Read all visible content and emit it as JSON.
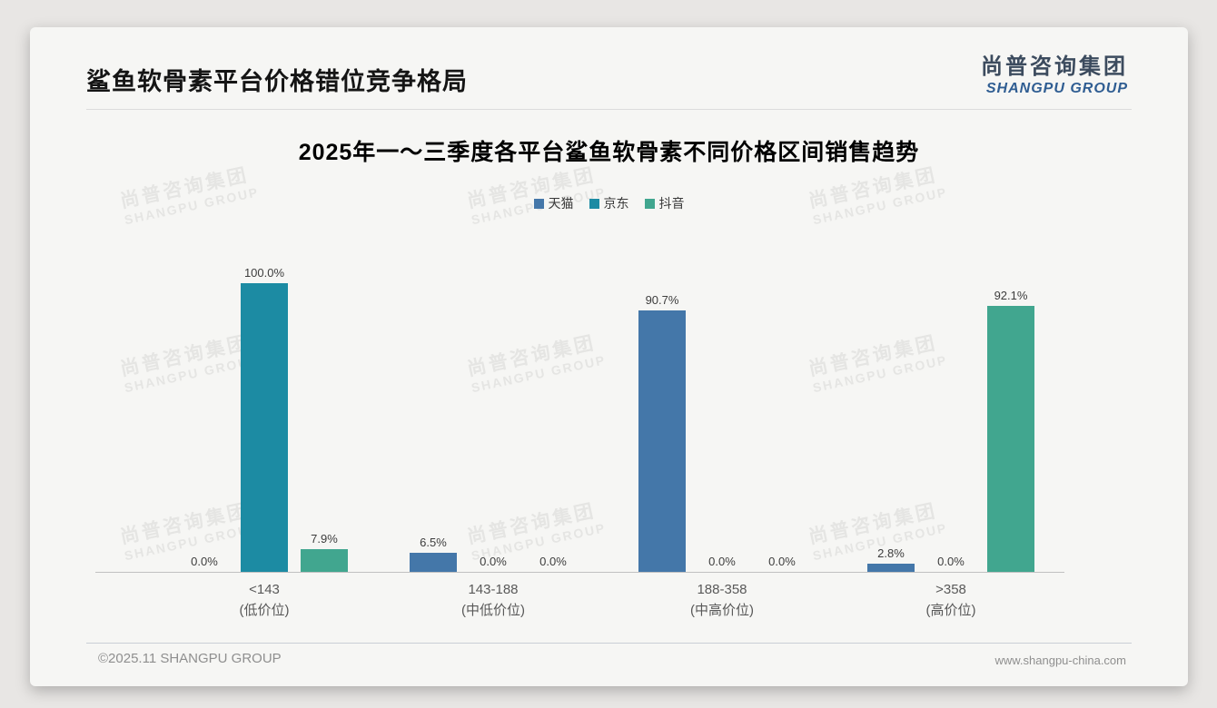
{
  "page": {
    "title": "鲨鱼软骨素平台价格错位竞争格局",
    "logo": {
      "cn": "尚普咨询集团",
      "en": "SHANGPU GROUP"
    },
    "watermark": {
      "cn": "尚普咨询集团",
      "en": "SHANGPU GROUP"
    },
    "footer": {
      "left": "©2025.11 SHANGPU GROUP",
      "right": "www.shangpu-china.com"
    }
  },
  "chart_data": {
    "type": "bar",
    "title": "2025年一～三季度各平台鲨鱼软骨素不同价格区间销售趋势",
    "categories": [
      {
        "range": "<143",
        "tier": "(低价位)"
      },
      {
        "range": "143-188",
        "tier": "(中低价位)"
      },
      {
        "range": "188-358",
        "tier": "(中高价位)"
      },
      {
        "range": ">358",
        "tier": "(高价位)"
      }
    ],
    "series": [
      {
        "name": "天猫",
        "color": "#4477a9",
        "values": [
          0.0,
          6.5,
          90.7,
          2.8
        ]
      },
      {
        "name": "京东",
        "color": "#1c8ba3",
        "values": [
          100.0,
          0.0,
          0.0,
          0.0
        ]
      },
      {
        "name": "抖音",
        "color": "#41a68f",
        "values": [
          7.9,
          0.0,
          0.0,
          92.1
        ]
      }
    ],
    "value_suffix": "%",
    "ylim": [
      0,
      100
    ],
    "grid": false,
    "legend_position": "top-center",
    "colors": {
      "tmall_blue": "#4477a9",
      "jd_teal": "#1c8ba3",
      "douyin_green": "#41a68f"
    }
  }
}
